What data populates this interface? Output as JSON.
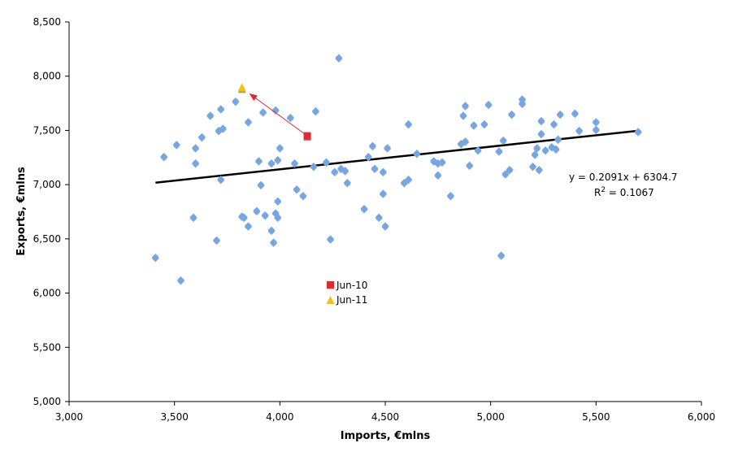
{
  "chart_data": {
    "type": "scatter",
    "xlabel": "Imports, €mlns",
    "ylabel": "Exports, €mlns",
    "xlim": [
      3000,
      6000
    ],
    "ylim": [
      5000,
      8500
    ],
    "x_ticks": [
      3000,
      3500,
      4000,
      4500,
      5000,
      5500,
      6000
    ],
    "y_ticks": [
      5000,
      5500,
      6000,
      6500,
      7000,
      7500,
      8000,
      8500
    ],
    "x_tick_labels": [
      "3,000",
      "3,500",
      "4,000",
      "4,500",
      "5,000",
      "5,500",
      "6,000"
    ],
    "y_tick_labels": [
      "5,000",
      "5,500",
      "6,000",
      "6,500",
      "7,000",
      "7,500",
      "8,000",
      "8,500"
    ],
    "grid": false,
    "colors": {
      "points": "#6fa8ea",
      "point_edge": "#8f9bb0",
      "jun10": "#e02a30",
      "jun11": "#f5c400",
      "trendline": "#000000",
      "arrow": "#e02a30"
    },
    "points": [
      [
        3410,
        6330
      ],
      [
        3450,
        7260
      ],
      [
        3510,
        7370
      ],
      [
        3530,
        6120
      ],
      [
        3590,
        6700
      ],
      [
        3600,
        7340
      ],
      [
        3600,
        7200
      ],
      [
        3630,
        7440
      ],
      [
        3670,
        7640
      ],
      [
        3700,
        6490
      ],
      [
        3710,
        7500
      ],
      [
        3720,
        7700
      ],
      [
        3730,
        7520
      ],
      [
        3720,
        7050
      ],
      [
        3790,
        7770
      ],
      [
        3820,
        6710
      ],
      [
        3830,
        6700
      ],
      [
        3850,
        7580
      ],
      [
        3850,
        6620
      ],
      [
        3890,
        6760
      ],
      [
        3900,
        7220
      ],
      [
        3910,
        7000
      ],
      [
        3920,
        7670
      ],
      [
        3930,
        6720
      ],
      [
        3960,
        6580
      ],
      [
        3960,
        7200
      ],
      [
        3970,
        6470
      ],
      [
        3980,
        7690
      ],
      [
        3980,
        6740
      ],
      [
        3990,
        7230
      ],
      [
        3990,
        6850
      ],
      [
        3990,
        6700
      ],
      [
        4000,
        7340
      ],
      [
        4050,
        7620
      ],
      [
        4070,
        7200
      ],
      [
        4080,
        6960
      ],
      [
        4110,
        6900
      ],
      [
        4160,
        7170
      ],
      [
        4170,
        7680
      ],
      [
        4220,
        7210
      ],
      [
        4240,
        6500
      ],
      [
        4260,
        7120
      ],
      [
        4280,
        8170
      ],
      [
        4290,
        7150
      ],
      [
        4310,
        7130
      ],
      [
        4320,
        7020
      ],
      [
        4400,
        6780
      ],
      [
        4420,
        7260
      ],
      [
        4440,
        7360
      ],
      [
        4450,
        7150
      ],
      [
        4470,
        6700
      ],
      [
        4490,
        6920
      ],
      [
        4490,
        7120
      ],
      [
        4500,
        6620
      ],
      [
        4510,
        7340
      ],
      [
        4590,
        7020
      ],
      [
        4610,
        7560
      ],
      [
        4610,
        7050
      ],
      [
        4650,
        7290
      ],
      [
        4730,
        7220
      ],
      [
        4750,
        7200
      ],
      [
        4750,
        7090
      ],
      [
        4770,
        7210
      ],
      [
        4810,
        6900
      ],
      [
        4860,
        7380
      ],
      [
        4870,
        7640
      ],
      [
        4880,
        7730
      ],
      [
        4880,
        7400
      ],
      [
        4900,
        7180
      ],
      [
        4920,
        7550
      ],
      [
        4940,
        7320
      ],
      [
        4970,
        7560
      ],
      [
        4990,
        7740
      ],
      [
        5040,
        7310
      ],
      [
        5050,
        6350
      ],
      [
        5060,
        7410
      ],
      [
        5070,
        7100
      ],
      [
        5090,
        7140
      ],
      [
        5100,
        7650
      ],
      [
        5150,
        7790
      ],
      [
        5150,
        7750
      ],
      [
        5200,
        7170
      ],
      [
        5210,
        7280
      ],
      [
        5220,
        7340
      ],
      [
        5230,
        7140
      ],
      [
        5240,
        7590
      ],
      [
        5240,
        7470
      ],
      [
        5260,
        7320
      ],
      [
        5290,
        7350
      ],
      [
        5300,
        7560
      ],
      [
        5310,
        7330
      ],
      [
        5320,
        7420
      ],
      [
        5330,
        7650
      ],
      [
        5400,
        7660
      ],
      [
        5420,
        7500
      ],
      [
        5500,
        7510
      ],
      [
        5500,
        7580
      ],
      [
        5700,
        7490
      ]
    ],
    "highlight": {
      "jun10": {
        "label": "Jun-10",
        "x": 4130,
        "y": 7450
      },
      "jun11": {
        "label": "Jun-11",
        "x": 3820,
        "y": 7890
      }
    },
    "trendline": {
      "slope": 0.2091,
      "intercept": 6304.7,
      "x_range": [
        3410,
        5700
      ],
      "equation_text": "y = 0.2091x + 6304.7",
      "r2_prefix": "R",
      "r2_sup": "2",
      "r2_suffix": " = 0.1067"
    },
    "legend": [
      {
        "label": "Jun-10",
        "marker": "square"
      },
      {
        "label": "Jun-11",
        "marker": "triangle"
      }
    ]
  }
}
